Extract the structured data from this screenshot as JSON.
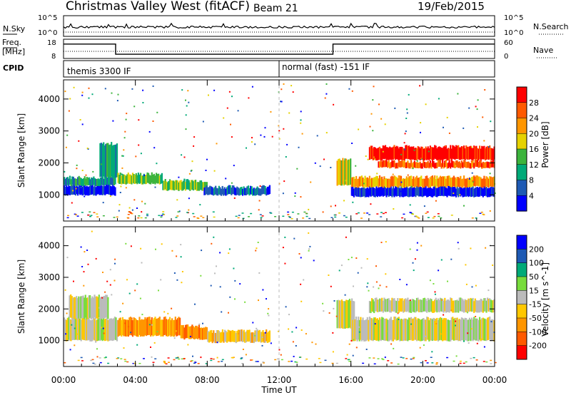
{
  "header": {
    "station": "Christmas Valley West (fitACF)",
    "beam": "Beam 21",
    "date": "19/Feb/2015"
  },
  "noise_panel": {
    "left_label": "N.Sky",
    "right_label": "N.Search",
    "left_ticks": [
      "10^5",
      "10^0"
    ],
    "right_ticks": [
      "10^5",
      "10^0"
    ]
  },
  "freq_panel": {
    "left_label_1": "Freq.",
    "left_label_2": "[MHz]",
    "right_label": "Nave",
    "left_ticks": [
      "18",
      "8"
    ],
    "right_ticks": [
      "60",
      "0"
    ]
  },
  "cpid": {
    "label": "CPID",
    "segments": [
      {
        "start_hour": 0,
        "end_hour": 12,
        "text": "themis 3300 IF"
      },
      {
        "start_hour": 12,
        "end_hour": 24,
        "text": "normal (fast) -151 IF"
      }
    ]
  },
  "power_colorbar": {
    "label": "Power [dB]",
    "ticks": [
      "28",
      "24",
      "20",
      "16",
      "12",
      "8",
      "4"
    ],
    "colors": [
      "#ff0000",
      "#ff5a00",
      "#ff9600",
      "#e6d200",
      "#3cb43c",
      "#00aa78",
      "#1e5ab4",
      "#0000ff"
    ]
  },
  "velocity_colorbar": {
    "label": "Velocity [m s^-1]",
    "ticks": [
      "200",
      "100",
      "50",
      "15",
      "-15",
      "-50",
      "-100",
      "-200"
    ],
    "colors": [
      "#0000ff",
      "#1e5ab4",
      "#00aa78",
      "#78dc3c",
      "#bbbbbb",
      "#ffc800",
      "#ff9600",
      "#ff5a00",
      "#ff0000"
    ]
  },
  "chart_data": [
    {
      "type": "heatmap",
      "name": "power",
      "ylabel": "Slant Range [km]",
      "xlabel": "Time UT",
      "xlim": [
        0,
        24
      ],
      "ylim": [
        180,
        4600
      ],
      "x_ticks": [
        "00:00",
        "04:00",
        "08:00",
        "12:00",
        "16:00",
        "20:00",
        "00:00"
      ],
      "y_ticks": [
        1000,
        2000,
        3000,
        4000
      ],
      "bands": [
        {
          "t0": 0.0,
          "t1": 2.9,
          "r0": 1000,
          "r1": 1300,
          "level": 7
        },
        {
          "t0": 0.0,
          "t1": 2.9,
          "r0": 1300,
          "r1": 1550,
          "level": 5
        },
        {
          "t0": 2.0,
          "t1": 3.0,
          "r0": 1550,
          "r1": 2600,
          "level": 5
        },
        {
          "t0": 3.0,
          "t1": 5.5,
          "r0": 1350,
          "r1": 1650,
          "level": 4
        },
        {
          "t0": 5.5,
          "t1": 8.0,
          "r0": 1150,
          "r1": 1450,
          "level": 4
        },
        {
          "t0": 7.8,
          "t1": 11.5,
          "r0": 1000,
          "r1": 1250,
          "level": 6
        },
        {
          "t0": 15.2,
          "t1": 16.0,
          "r0": 1300,
          "r1": 2100,
          "level": 3
        },
        {
          "t0": 16.0,
          "t1": 24.0,
          "r0": 950,
          "r1": 1250,
          "level": 7
        },
        {
          "t0": 16.0,
          "t1": 24.0,
          "r0": 1250,
          "r1": 1550,
          "level": 2
        },
        {
          "t0": 17.5,
          "t1": 24.0,
          "r0": 1850,
          "r1": 2050,
          "level": 1
        },
        {
          "t0": 17.0,
          "t1": 24.0,
          "r0": 2100,
          "r1": 2500,
          "level": 0
        }
      ]
    },
    {
      "type": "heatmap",
      "name": "velocity",
      "ylabel": "Slant Range [km]",
      "xlabel": "Time UT",
      "xlim": [
        0,
        24
      ],
      "ylim": [
        180,
        4600
      ],
      "x_ticks": [
        "00:00",
        "04:00",
        "08:00",
        "12:00",
        "16:00",
        "20:00",
        "00:00"
      ],
      "y_ticks": [
        1000,
        2000,
        3000,
        4000
      ],
      "bands": [
        {
          "t0": 0.0,
          "t1": 3.0,
          "r0": 1000,
          "r1": 1700,
          "level": 4
        },
        {
          "t0": 0.3,
          "t1": 2.5,
          "r0": 1700,
          "r1": 2400,
          "level": 4
        },
        {
          "t0": 3.0,
          "t1": 6.5,
          "r0": 1150,
          "r1": 1700,
          "level": 6
        },
        {
          "t0": 6.5,
          "t1": 8.0,
          "r0": 1050,
          "r1": 1450,
          "level": 6
        },
        {
          "t0": 8.0,
          "t1": 11.5,
          "r0": 950,
          "r1": 1300,
          "level": 5
        },
        {
          "t0": 15.2,
          "t1": 16.2,
          "r0": 1400,
          "r1": 2300,
          "level": 4
        },
        {
          "t0": 16.0,
          "t1": 24.0,
          "r0": 1000,
          "r1": 1700,
          "level": 4
        },
        {
          "t0": 17.0,
          "t1": 24.0,
          "r0": 1900,
          "r1": 2300,
          "level": 4
        }
      ]
    },
    {
      "type": "line",
      "name": "frequency",
      "x": [
        0,
        2.9,
        2.9,
        15.0,
        15.0,
        24
      ],
      "y": [
        15.5,
        15.5,
        10.2,
        10.2,
        15.5,
        15.5
      ],
      "ylim": [
        8,
        18
      ]
    }
  ]
}
